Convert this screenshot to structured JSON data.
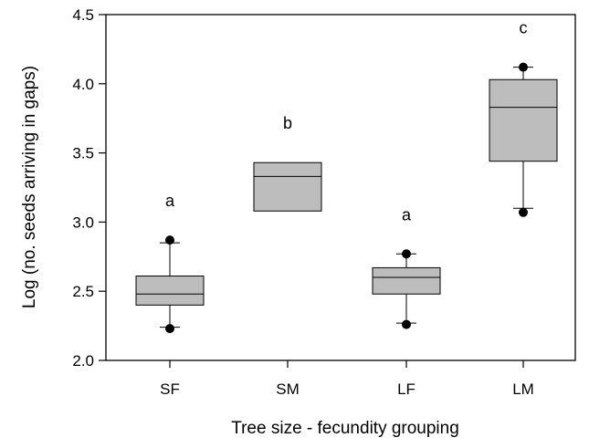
{
  "chart_data": {
    "type": "box",
    "xlabel": "Tree size - fecundity grouping",
    "ylabel": "Log (no. seeds arriving in gaps)",
    "ylim": [
      2.0,
      4.5
    ],
    "yticks": [
      "2.0",
      "2.5",
      "3.0",
      "3.5",
      "4.0",
      "4.5"
    ],
    "categories": [
      "SF",
      "SM",
      "LF",
      "LM"
    ],
    "box_color": "#bdbdbd",
    "boxes": [
      {
        "category": "SF",
        "q1": 2.4,
        "median": 2.48,
        "q3": 2.61,
        "whisker_low": 2.24,
        "whisker_high": 2.85,
        "outliers": [
          2.23,
          2.87
        ],
        "letter": "a"
      },
      {
        "category": "SM",
        "q1": 3.08,
        "median": 3.33,
        "q3": 3.43,
        "whisker_low": null,
        "whisker_high": null,
        "outliers": [],
        "letter": "b"
      },
      {
        "category": "LF",
        "q1": 2.48,
        "median": 2.6,
        "q3": 2.67,
        "whisker_low": 2.27,
        "whisker_high": 2.77,
        "outliers": [
          2.26,
          2.77
        ],
        "letter": "a"
      },
      {
        "category": "LM",
        "q1": 3.44,
        "median": 3.83,
        "q3": 4.03,
        "whisker_low": 3.1,
        "whisker_high": 4.12,
        "outliers": [
          3.07,
          4.12
        ],
        "letter": "c"
      }
    ]
  }
}
